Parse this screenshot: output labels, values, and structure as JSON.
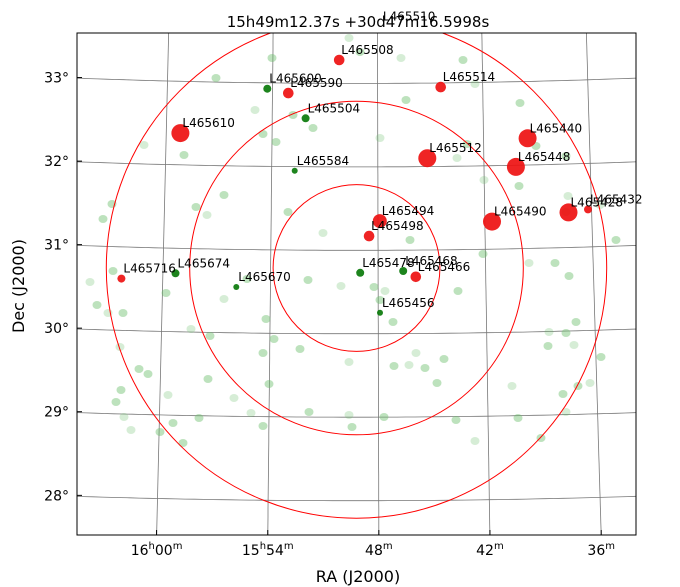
{
  "chart_data": {
    "type": "scatter",
    "title": "15h49m12.37s +30d47m16.5998s",
    "xlabel": "RA (J2000)",
    "ylabel": "Dec (J2000)",
    "xlim_ra_min": [
      966,
      934
    ],
    "ylim_dec_deg": [
      27.75,
      33.75
    ],
    "x_ticks": [
      {
        "ra_min": 960,
        "label": "16h00m"
      },
      {
        "ra_min": 954,
        "label": "15h54m"
      },
      {
        "ra_min": 948,
        "label": "48m"
      },
      {
        "ra_min": 942,
        "label": "42m"
      },
      {
        "ra_min": 936,
        "label": "36m"
      }
    ],
    "y_ticks": [
      {
        "dec": 33,
        "label": "33°"
      },
      {
        "dec": 32,
        "label": "32°"
      },
      {
        "dec": 31,
        "label": "31°"
      },
      {
        "dec": 30,
        "label": "30°"
      },
      {
        "dec": 29,
        "label": "29°"
      },
      {
        "dec": 28,
        "label": "28°"
      }
    ],
    "rings_deg": [
      1.0,
      2.0,
      3.0
    ],
    "colors": {
      "ring": "#ff0000",
      "red": "#ee1111",
      "green": "#0a7a0a",
      "faint_green": "#6cbf6c",
      "grid": "#777777"
    },
    "sources": [
      {
        "name": "L465510",
        "ra": 947.8,
        "dec": 33.68,
        "size": 2,
        "color": "red"
      },
      {
        "name": "L465508",
        "ra": 950.2,
        "dec": 33.28,
        "size": 3,
        "color": "red"
      },
      {
        "name": "L465514",
        "ra": 944.4,
        "dec": 32.95,
        "size": 3,
        "color": "red"
      },
      {
        "name": "L465600",
        "ra": 954.3,
        "dec": 32.93,
        "size": 2,
        "color": "green"
      },
      {
        "name": "L465590",
        "ra": 953.1,
        "dec": 32.88,
        "size": 3,
        "color": "red"
      },
      {
        "name": "L465504",
        "ra": 952.1,
        "dec": 32.58,
        "size": 2,
        "color": "green"
      },
      {
        "name": "L465610",
        "ra": 959.2,
        "dec": 32.38,
        "size": 5,
        "color": "red"
      },
      {
        "name": "L465440",
        "ra": 939.5,
        "dec": 32.32,
        "size": 5,
        "color": "red"
      },
      {
        "name": "L465512",
        "ra": 945.2,
        "dec": 32.1,
        "size": 5,
        "color": "red"
      },
      {
        "name": "L465448",
        "ra": 940.2,
        "dec": 31.98,
        "size": 5,
        "color": "red"
      },
      {
        "name": "L465584",
        "ra": 952.7,
        "dec": 31.95,
        "size": 1,
        "color": "green"
      },
      {
        "name": "L465432",
        "ra": 936.2,
        "dec": 31.45,
        "size": 2,
        "color": "red"
      },
      {
        "name": "L465428",
        "ra": 937.3,
        "dec": 31.42,
        "size": 5,
        "color": "red"
      },
      {
        "name": "L465490",
        "ra": 941.6,
        "dec": 31.33,
        "size": 5,
        "color": "red"
      },
      {
        "name": "L465494",
        "ra": 947.9,
        "dec": 31.35,
        "size": 4,
        "color": "red"
      },
      {
        "name": "L465498",
        "ra": 948.5,
        "dec": 31.17,
        "size": 3,
        "color": "red"
      },
      {
        "name": "L465478",
        "ra": 949.0,
        "dec": 30.73,
        "size": 2,
        "color": "green"
      },
      {
        "name": "L465468",
        "ra": 946.6,
        "dec": 30.75,
        "size": 2,
        "color": "green"
      },
      {
        "name": "L465466",
        "ra": 945.9,
        "dec": 30.68,
        "size": 3,
        "color": "red"
      },
      {
        "name": "L465674",
        "ra": 959.3,
        "dec": 30.7,
        "size": 2,
        "color": "green"
      },
      {
        "name": "L465716",
        "ra": 962.3,
        "dec": 30.62,
        "size": 2,
        "color": "red"
      },
      {
        "name": "L465670",
        "ra": 955.9,
        "dec": 30.55,
        "size": 1,
        "color": "green"
      },
      {
        "name": "L465456",
        "ra": 947.9,
        "dec": 30.25,
        "size": 1,
        "color": "green"
      }
    ]
  }
}
